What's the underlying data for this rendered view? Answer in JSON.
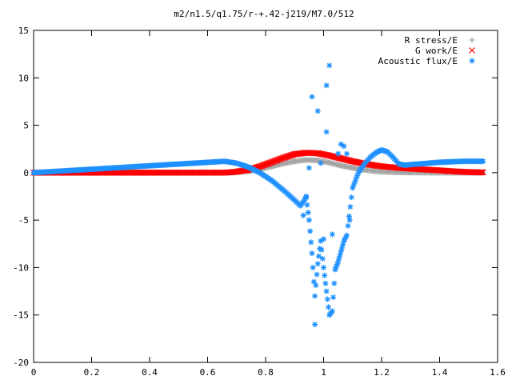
{
  "chart_data": {
    "type": "scatter",
    "title": "m2/n1.5/q1.75/r-+.42-j219/M7.0/512",
    "xlabel": "",
    "ylabel": "",
    "xlim": [
      0,
      1.6
    ],
    "ylim": [
      -20,
      15
    ],
    "x_ticks": [
      "0",
      "0.2",
      "0.4",
      "0.6",
      "0.8",
      "1",
      "1.2",
      "1.4",
      "1.6"
    ],
    "y_ticks": [
      "15",
      "10",
      "5",
      "0",
      "-5",
      "-10",
      "-15",
      "-20"
    ],
    "grid": false,
    "legend_position": "top-right",
    "series": [
      {
        "name": "R stress/E",
        "marker": "plus",
        "color": "#a0a0a0",
        "x": [
          0.0,
          0.66,
          0.7,
          0.74,
          0.78,
          0.82,
          0.86,
          0.9,
          0.94,
          0.98,
          1.02,
          1.06,
          1.1,
          1.14,
          1.18,
          1.22,
          1.26,
          1.3,
          1.34,
          1.38,
          1.42,
          1.46,
          1.5,
          1.55
        ],
        "y": [
          0.0,
          0.0,
          0.05,
          0.15,
          0.35,
          0.65,
          0.95,
          1.2,
          1.35,
          1.3,
          1.05,
          0.75,
          0.5,
          0.3,
          0.15,
          0.08,
          0.04,
          0.02,
          0.01,
          0.0,
          0.0,
          0.0,
          0.0,
          0.0
        ]
      },
      {
        "name": "G work/E",
        "marker": "cross",
        "color": "#ff0000",
        "x": [
          0.0,
          0.66,
          0.7,
          0.74,
          0.78,
          0.82,
          0.86,
          0.9,
          0.94,
          0.98,
          1.02,
          1.06,
          1.1,
          1.14,
          1.18,
          1.22,
          1.26,
          1.3,
          1.34,
          1.38,
          1.42,
          1.46,
          1.5,
          1.55
        ],
        "y": [
          0.0,
          0.0,
          0.1,
          0.3,
          0.65,
          1.1,
          1.55,
          1.95,
          2.1,
          2.05,
          1.8,
          1.5,
          1.2,
          0.95,
          0.75,
          0.6,
          0.5,
          0.42,
          0.35,
          0.28,
          0.2,
          0.12,
          0.06,
          0.03
        ]
      },
      {
        "name": "Acoustic flux/E",
        "marker": "star",
        "color": "#1e90ff",
        "x": [
          0.0,
          0.66,
          0.7,
          0.74,
          0.78,
          0.82,
          0.86,
          0.9,
          0.92,
          0.94,
          0.95,
          0.96,
          0.97,
          0.98,
          0.99,
          1.0,
          1.01,
          1.02,
          1.03,
          1.04,
          1.05,
          1.06,
          1.07,
          1.08,
          1.1,
          1.12,
          1.14,
          1.16,
          1.18,
          1.2,
          1.22,
          1.24,
          1.26,
          1.28,
          1.32,
          1.36,
          1.4,
          1.44,
          1.48,
          1.52,
          1.55
        ],
        "y": [
          0.0,
          1.2,
          1.0,
          0.6,
          0.0,
          -0.8,
          -1.8,
          -2.9,
          -3.5,
          -2.6,
          -5.0,
          -8.5,
          -13.0,
          -9.6,
          -7.2,
          -10.0,
          -12.5,
          -15.0,
          -14.6,
          -10.2,
          -9.4,
          -8.3,
          -7.2,
          -6.6,
          -1.6,
          0.0,
          0.9,
          1.6,
          2.1,
          2.4,
          2.2,
          1.6,
          0.9,
          0.8,
          0.9,
          1.0,
          1.1,
          1.15,
          1.2,
          1.2,
          1.2
        ]
      }
    ],
    "acoustic_outliers": {
      "x": [
        0.93,
        0.94,
        0.95,
        0.96,
        0.97,
        0.98,
        0.99,
        1.0,
        1.01,
        1.01,
        1.02,
        1.03,
        1.04,
        1.05,
        1.06,
        1.07,
        1.08,
        1.09
      ],
      "y": [
        -4.5,
        -2.5,
        0.5,
        8.0,
        -16.0,
        6.5,
        1.0,
        -7.0,
        4.3,
        9.2,
        11.3,
        -6.5,
        -10.2,
        2.0,
        3.0,
        2.8,
        2.0,
        -5.0
      ]
    },
    "acoustic_outlier_series_name": "Acoustic flux/E"
  }
}
